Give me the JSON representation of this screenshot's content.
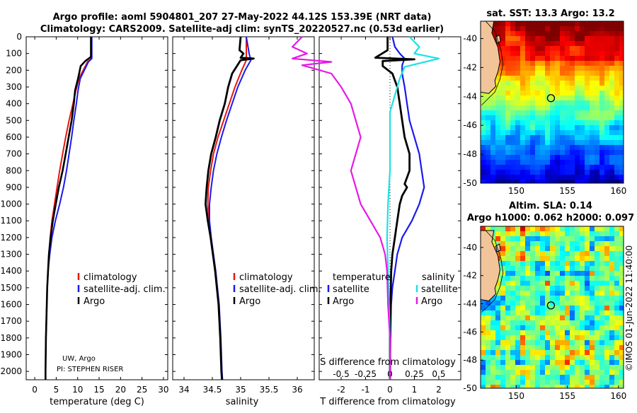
{
  "header": {
    "line1": "Argo profile: aoml 5904801_207 27-May-2022 44.12S 153.39E (NRT data)",
    "line2": "Climatology: CARS2009. Satellite-adj clim: synTS_20220527.nc (0.53d earlier)"
  },
  "colors": {
    "clim": "#e8160c",
    "sat": "#1a1aee",
    "argo": "#000000",
    "satS": "#19e3e3",
    "argoS": "#e619e6",
    "mapBorder": "#000000"
  },
  "credits": {
    "line1": "UW, Argo",
    "line2": "PI: STEPHEN RISER",
    "imos": "©IMOS 01-Jun-2022 11:40:00"
  },
  "axis": {
    "depth_ticks": [
      0,
      100,
      200,
      300,
      400,
      500,
      600,
      700,
      800,
      900,
      1000,
      1100,
      1200,
      1300,
      1400,
      1500,
      1600,
      1700,
      1800,
      1900,
      2000
    ],
    "depth_range": [
      0,
      2050
    ]
  },
  "chart_data": [
    {
      "type": "line",
      "name": "temperature-profile",
      "xlabel": "temperature (deg C)",
      "xlim": [
        -2,
        31
      ],
      "xticks": [
        0,
        5,
        10,
        15,
        20,
        25,
        30
      ],
      "legend": {
        "position": "middle-right",
        "entries": [
          "climatology",
          "satellite-adj. clim.",
          "Argo"
        ]
      },
      "series": [
        {
          "name": "climatology",
          "key": "clim",
          "points": [
            [
              13.2,
              0
            ],
            [
              13.2,
              130
            ],
            [
              12.3,
              150
            ],
            [
              10.3,
              250
            ],
            [
              9.6,
              320
            ],
            [
              8.9,
              400
            ],
            [
              8.0,
              500
            ],
            [
              7.2,
              600
            ],
            [
              6.5,
              700
            ],
            [
              5.8,
              800
            ],
            [
              5.2,
              900
            ],
            [
              4.6,
              1000
            ],
            [
              4.0,
              1100
            ],
            [
              3.6,
              1200
            ],
            [
              3.3,
              1300
            ],
            [
              3.1,
              1400
            ],
            [
              2.9,
              1500
            ],
            [
              2.8,
              1600
            ],
            [
              2.6,
              1800
            ],
            [
              2.5,
              2000
            ],
            [
              2.5,
              2050
            ]
          ]
        },
        {
          "name": "satellite-adj. clim.",
          "key": "sat",
          "points": [
            [
              13.3,
              0
            ],
            [
              13.3,
              130
            ],
            [
              12.5,
              150
            ],
            [
              10.6,
              250
            ],
            [
              10.1,
              320
            ],
            [
              9.7,
              400
            ],
            [
              9.1,
              500
            ],
            [
              8.6,
              600
            ],
            [
              8.0,
              700
            ],
            [
              7.4,
              800
            ],
            [
              6.7,
              900
            ],
            [
              5.8,
              1000
            ],
            [
              4.8,
              1100
            ],
            [
              4.0,
              1200
            ],
            [
              3.5,
              1300
            ],
            [
              3.1,
              1400
            ],
            [
              2.9,
              1500
            ],
            [
              2.8,
              1600
            ],
            [
              2.6,
              1800
            ],
            [
              2.5,
              2000
            ],
            [
              2.5,
              2050
            ]
          ]
        },
        {
          "name": "Argo",
          "key": "argo",
          "points": [
            [
              13.1,
              0
            ],
            [
              13.1,
              120
            ],
            [
              11.8,
              145
            ],
            [
              10.7,
              175
            ],
            [
              10.1,
              250
            ],
            [
              9.4,
              320
            ],
            [
              9.1,
              400
            ],
            [
              8.6,
              500
            ],
            [
              7.9,
              600
            ],
            [
              7.2,
              700
            ],
            [
              6.5,
              800
            ],
            [
              5.6,
              900
            ],
            [
              4.9,
              1000
            ],
            [
              4.2,
              1100
            ],
            [
              3.7,
              1200
            ],
            [
              3.3,
              1300
            ],
            [
              3.1,
              1400
            ],
            [
              2.9,
              1500
            ],
            [
              2.8,
              1600
            ],
            [
              2.6,
              1800
            ],
            [
              2.5,
              2000
            ],
            [
              2.5,
              2050
            ]
          ]
        }
      ]
    },
    {
      "type": "line",
      "name": "salinity-profile",
      "xlabel": "salinity",
      "xlim": [
        33.8,
        36.3
      ],
      "xticks": [
        34,
        34.5,
        35,
        35.5,
        36
      ],
      "legend": {
        "position": "middle-right",
        "entries": [
          "climatology",
          "satellite-adj. clim.",
          "Argo"
        ]
      },
      "series": [
        {
          "name": "climatology",
          "key": "clim",
          "points": [
            [
              35.1,
              0
            ],
            [
              35.1,
              100
            ],
            [
              35.1,
              140
            ],
            [
              35.02,
              200
            ],
            [
              34.9,
              300
            ],
            [
              34.8,
              400
            ],
            [
              34.7,
              500
            ],
            [
              34.6,
              600
            ],
            [
              34.52,
              700
            ],
            [
              34.47,
              800
            ],
            [
              34.43,
              900
            ],
            [
              34.42,
              1000
            ],
            [
              34.44,
              1100
            ],
            [
              34.47,
              1200
            ],
            [
              34.51,
              1300
            ],
            [
              34.55,
              1400
            ],
            [
              34.58,
              1500
            ],
            [
              34.61,
              1600
            ],
            [
              34.64,
              1800
            ],
            [
              34.66,
              2000
            ],
            [
              34.67,
              2050
            ]
          ]
        },
        {
          "name": "satellite-adj. clim.",
          "key": "sat",
          "points": [
            [
              35.1,
              0
            ],
            [
              35.15,
              100
            ],
            [
              35.18,
              140
            ],
            [
              35.08,
              200
            ],
            [
              34.95,
              300
            ],
            [
              34.85,
              400
            ],
            [
              34.75,
              500
            ],
            [
              34.66,
              600
            ],
            [
              34.58,
              700
            ],
            [
              34.52,
              800
            ],
            [
              34.48,
              900
            ],
            [
              34.45,
              1000
            ],
            [
              34.45,
              1100
            ],
            [
              34.48,
              1200
            ],
            [
              34.52,
              1300
            ],
            [
              34.56,
              1400
            ],
            [
              34.59,
              1500
            ],
            [
              34.62,
              1600
            ],
            [
              34.65,
              1800
            ],
            [
              34.67,
              2000
            ],
            [
              34.68,
              2050
            ]
          ]
        },
        {
          "name": "Argo",
          "key": "argo",
          "points": [
            [
              35.0,
              0
            ],
            [
              34.98,
              80
            ],
            [
              35.05,
              100
            ],
            [
              35.0,
              125
            ],
            [
              35.23,
              130
            ],
            [
              35.0,
              140
            ],
            [
              34.85,
              220
            ],
            [
              34.78,
              300
            ],
            [
              34.72,
              400
            ],
            [
              34.63,
              500
            ],
            [
              34.56,
              600
            ],
            [
              34.48,
              700
            ],
            [
              34.43,
              800
            ],
            [
              34.4,
              900
            ],
            [
              34.38,
              1000
            ],
            [
              34.42,
              1100
            ],
            [
              34.47,
              1200
            ],
            [
              34.51,
              1300
            ],
            [
              34.55,
              1400
            ],
            [
              34.58,
              1500
            ],
            [
              34.61,
              1600
            ],
            [
              34.64,
              1800
            ],
            [
              34.66,
              2000
            ],
            [
              34.67,
              2050
            ]
          ]
        }
      ]
    },
    {
      "type": "line",
      "name": "difference-profile",
      "xlabel": "T difference from climatology",
      "s_label": "S difference from climatology",
      "xlim": [
        -2.9,
        2.9
      ],
      "xticks": [
        -2,
        -1,
        0,
        1,
        2
      ],
      "s_ticks": [
        [
          -0.5,
          "-0.5"
        ],
        [
          -0.25,
          "-0.25"
        ],
        [
          0,
          "0"
        ],
        [
          0.25,
          "0.25"
        ],
        [
          0.5,
          "0.5"
        ]
      ],
      "legend": {
        "temperature_title": "temperature",
        "salinity_title": "salinity",
        "entries_left": [
          "satellite",
          "Argo"
        ],
        "entries_right": [
          "satellite",
          "Argo"
        ]
      },
      "series": [
        {
          "name": "T satellite",
          "key": "sat",
          "points": [
            [
              0.1,
              0
            ],
            [
              0.2,
              60
            ],
            [
              0.4,
              100
            ],
            [
              0.6,
              130
            ],
            [
              0.5,
              170
            ],
            [
              0.5,
              220
            ],
            [
              0.6,
              300
            ],
            [
              0.7,
              400
            ],
            [
              0.8,
              500
            ],
            [
              1.0,
              600
            ],
            [
              1.2,
              700
            ],
            [
              1.3,
              800
            ],
            [
              1.4,
              900
            ],
            [
              1.2,
              1000
            ],
            [
              0.9,
              1100
            ],
            [
              0.5,
              1200
            ],
            [
              0.3,
              1300
            ],
            [
              0.2,
              1400
            ],
            [
              0.1,
              1500
            ],
            [
              0.05,
              1600
            ],
            [
              0.02,
              1800
            ],
            [
              0.0,
              2000
            ],
            [
              0.0,
              2050
            ]
          ]
        },
        {
          "name": "T Argo",
          "key": "argo",
          "points": [
            [
              -0.1,
              0
            ],
            [
              -0.1,
              80
            ],
            [
              -0.6,
              125
            ],
            [
              1.0,
              135
            ],
            [
              -0.3,
              145
            ],
            [
              -0.3,
              175
            ],
            [
              0.1,
              220
            ],
            [
              0.3,
              300
            ],
            [
              0.4,
              400
            ],
            [
              0.5,
              500
            ],
            [
              0.6,
              600
            ],
            [
              0.8,
              700
            ],
            [
              0.8,
              800
            ],
            [
              0.6,
              880
            ],
            [
              0.7,
              900
            ],
            [
              0.5,
              950
            ],
            [
              0.4,
              1000
            ],
            [
              0.3,
              1100
            ],
            [
              0.2,
              1200
            ],
            [
              0.1,
              1300
            ],
            [
              0.05,
              1400
            ],
            [
              0.02,
              1600
            ],
            [
              0.0,
              1800
            ],
            [
              0.0,
              2000
            ],
            [
              0.0,
              2050
            ]
          ]
        },
        {
          "name": "S satellite",
          "key": "satS",
          "points": [
            [
              0.2,
              0
            ],
            [
              0.3,
              60
            ],
            [
              0.25,
              100
            ],
            [
              0.5,
              130
            ],
            [
              0.15,
              180
            ],
            [
              0.1,
              250
            ],
            [
              0.05,
              350
            ],
            [
              0.0,
              450
            ],
            [
              0.0,
              600
            ],
            [
              0.0,
              800
            ],
            [
              -0.02,
              1000
            ],
            [
              -0.03,
              1200
            ],
            [
              -0.02,
              1400
            ],
            [
              -0.01,
              1600
            ],
            [
              0.0,
              1800
            ],
            [
              0.0,
              2000
            ],
            [
              0.0,
              2050
            ]
          ]
        },
        {
          "name": "S Argo",
          "key": "argoS",
          "points": [
            [
              -0.9,
              0
            ],
            [
              -1.0,
              60
            ],
            [
              -0.85,
              100
            ],
            [
              -1.0,
              130
            ],
            [
              -0.6,
              150
            ],
            [
              -0.9,
              170
            ],
            [
              -0.6,
              220
            ],
            [
              -0.5,
              300
            ],
            [
              -0.4,
              400
            ],
            [
              -0.35,
              500
            ],
            [
              -0.3,
              600
            ],
            [
              -0.35,
              700
            ],
            [
              -0.4,
              800
            ],
            [
              -0.35,
              900
            ],
            [
              -0.3,
              1000
            ],
            [
              -0.2,
              1100
            ],
            [
              -0.1,
              1200
            ],
            [
              -0.05,
              1300
            ],
            [
              -0.03,
              1400
            ],
            [
              -0.02,
              1600
            ],
            [
              0.0,
              1800
            ],
            [
              0.0,
              2000
            ],
            [
              0.0,
              2050
            ]
          ]
        }
      ]
    },
    {
      "type": "heatmap",
      "name": "sst-map",
      "title": "sat. SST: 13.3 Argo: 13.2",
      "xlim": [
        146.5,
        160.5
      ],
      "ylim": [
        -50,
        -38.8
      ],
      "xticks": [
        150,
        155,
        160
      ],
      "yticks": [
        -40,
        -42,
        -44,
        -46,
        -48,
        -50
      ],
      "marker": [
        153.39,
        -44.12
      ]
    },
    {
      "type": "heatmap",
      "name": "sla-map",
      "title_line1": "Altim. SLA: 0.14",
      "title_line2": "Argo h1000: 0.062 h2000: 0.097",
      "xlim": [
        146.5,
        160.5
      ],
      "ylim": [
        -50,
        -38.5
      ],
      "xticks": [
        150,
        155,
        160
      ],
      "yticks": [
        -40,
        -42,
        -44,
        -46,
        -48,
        -50
      ],
      "marker": [
        153.39,
        -44.12
      ]
    }
  ]
}
